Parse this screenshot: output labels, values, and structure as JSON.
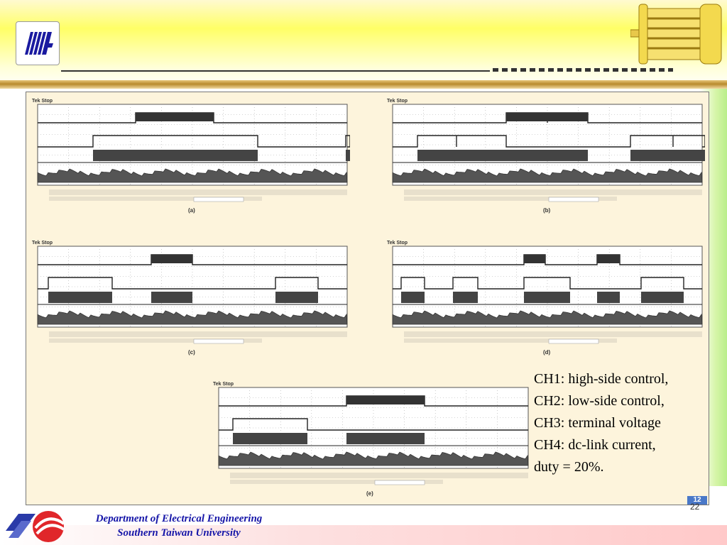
{
  "legend": {
    "line1": "CH1: high-side control,",
    "line2": "CH2: low-side control,",
    "line3": "CH3: terminal voltage",
    "line4": "CH4: dc-link current,",
    "line5": "duty = 20%."
  },
  "footer": {
    "department": "Department of Electrical Engineering",
    "university": "Southern Taiwan University"
  },
  "page": {
    "badge": "12",
    "number": "22"
  },
  "scopes": [
    {
      "title": "Tek Stop",
      "caption": "(a)"
    },
    {
      "title": "Tek Stop",
      "caption": "(b)"
    },
    {
      "title": "Tek Stop",
      "caption": "(c)"
    },
    {
      "title": "Tek Stop",
      "caption": "(d)"
    },
    {
      "title": "Tek Stop",
      "caption": "(e)"
    }
  ],
  "colors": {
    "header_yellow": "#ffff66",
    "figure_bg": "#fdf4dc",
    "legend_text": "#000000",
    "footer_text": "#1515a8",
    "badge_blue": "#4a78c8"
  },
  "icons": {
    "header_logo": "university-logo-icon",
    "motor": "motor-icon",
    "footer_logo": "footer-logo-icon"
  }
}
